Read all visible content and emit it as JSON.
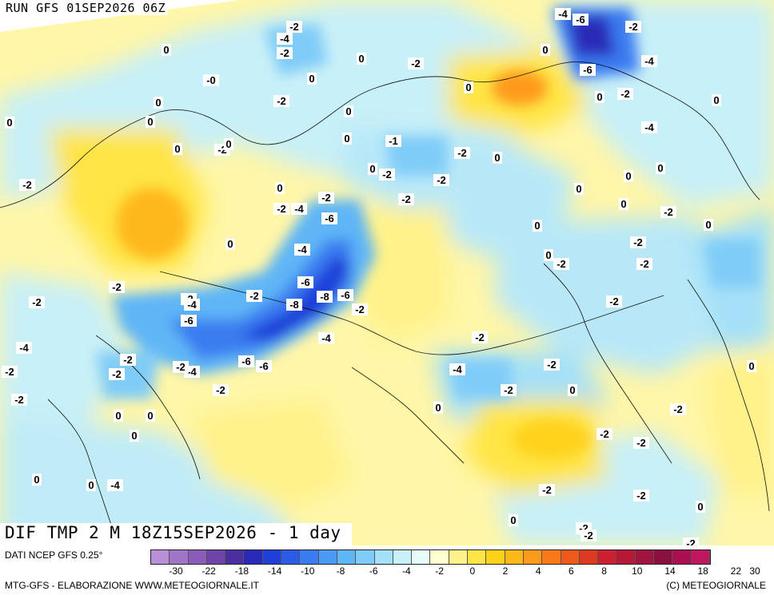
{
  "header": {
    "run": "RUN GFS 01SEP2026 06Z"
  },
  "title": "DIF TMP 2 M 18Z15SEP2026 - 1 day",
  "source": "DATI NCEP GFS 0.25°",
  "credit_left": "MTG-GFS - ELABORAZIONE WWW.METEOGIORNALE.IT",
  "credit_right": "(C) METEOGIORNALE",
  "colorbar": {
    "colors": [
      "#b98fd6",
      "#a075c8",
      "#8a5bb8",
      "#6f44a8",
      "#4a2fa0",
      "#2a2ab8",
      "#1f3fd8",
      "#2a5ce8",
      "#3a7cf0",
      "#4a9af4",
      "#5fb6f6",
      "#80ccf8",
      "#a4e0f8",
      "#c8f0f8",
      "#e8fbfb",
      "#ffffd0",
      "#fff28a",
      "#ffe545",
      "#ffd21a",
      "#ffb81a",
      "#ff9a1a",
      "#f97818",
      "#ee5a1a",
      "#de3a20",
      "#cc2030",
      "#b81838",
      "#a01440",
      "#8a1040",
      "#aa1050",
      "#c01860"
    ],
    "ticks": [
      "-30",
      "-22",
      "-18",
      "-14",
      "-10",
      "-8",
      "-6",
      "-4",
      "-2",
      "0",
      "2",
      "4",
      "6",
      "8",
      "10",
      "14",
      "18",
      "22",
      "30"
    ]
  },
  "map_labels": [
    {
      "text": "-2"
    },
    {
      "text": "-4"
    },
    {
      "text": "-2"
    },
    {
      "text": "-4"
    },
    {
      "text": "-6"
    },
    {
      "text": "-2"
    },
    {
      "text": "0"
    },
    {
      "text": "-4"
    },
    {
      "text": "0"
    },
    {
      "text": "-0"
    },
    {
      "text": "0"
    },
    {
      "text": "-2"
    },
    {
      "text": "0"
    },
    {
      "text": "-2"
    },
    {
      "text": "0"
    },
    {
      "text": "0"
    },
    {
      "text": "-6"
    },
    {
      "text": "0"
    },
    {
      "text": "-2"
    },
    {
      "text": "0"
    },
    {
      "text": "-4"
    },
    {
      "text": "0"
    },
    {
      "text": "0"
    },
    {
      "text": "0"
    },
    {
      "text": "0"
    },
    {
      "text": "-2"
    },
    {
      "text": "0"
    },
    {
      "text": "-1"
    },
    {
      "text": "-2"
    },
    {
      "text": "0"
    },
    {
      "text": "0"
    },
    {
      "text": "-2"
    },
    {
      "text": "0"
    },
    {
      "text": "-2"
    },
    {
      "text": "0"
    },
    {
      "text": "0"
    },
    {
      "text": "-2"
    },
    {
      "text": "-4"
    },
    {
      "text": "-6"
    },
    {
      "text": "-2"
    },
    {
      "text": "0"
    },
    {
      "text": "-2"
    },
    {
      "text": "-2"
    },
    {
      "text": "-4"
    },
    {
      "text": "0"
    },
    {
      "text": "0"
    },
    {
      "text": "0"
    },
    {
      "text": "-6"
    },
    {
      "text": "-8"
    },
    {
      "text": "-8"
    },
    {
      "text": "-6"
    },
    {
      "text": "-4"
    },
    {
      "text": "-2"
    },
    {
      "text": "-2"
    },
    {
      "text": "-2"
    },
    {
      "text": "-4"
    },
    {
      "text": "-6"
    },
    {
      "text": "-4"
    },
    {
      "text": "-2"
    },
    {
      "text": "-6"
    },
    {
      "text": "-6"
    },
    {
      "text": "-4"
    },
    {
      "text": "-2"
    },
    {
      "text": "-2"
    },
    {
      "text": "-2"
    },
    {
      "text": "0"
    },
    {
      "text": "0"
    },
    {
      "text": "-2"
    },
    {
      "text": "-2"
    },
    {
      "text": "0"
    },
    {
      "text": "-2"
    },
    {
      "text": "-2"
    },
    {
      "text": "-2"
    },
    {
      "text": "-4"
    },
    {
      "text": "-2"
    },
    {
      "text": "-2"
    },
    {
      "text": "-2"
    },
    {
      "text": "-2"
    },
    {
      "text": "0"
    },
    {
      "text": "-2"
    },
    {
      "text": "0"
    },
    {
      "text": "-2"
    },
    {
      "text": "0"
    },
    {
      "text": "0"
    },
    {
      "text": "0"
    },
    {
      "text": "-2"
    },
    {
      "text": "0"
    },
    {
      "text": "-2"
    },
    {
      "text": "0"
    },
    {
      "text": "0"
    },
    {
      "text": "-4"
    },
    {
      "text": "-2"
    },
    {
      "text": "-2"
    },
    {
      "text": "0"
    },
    {
      "text": "0"
    },
    {
      "text": "-2"
    },
    {
      "text": "-2"
    },
    {
      "text": "-2"
    },
    {
      "text": "0"
    },
    {
      "text": "0"
    },
    {
      "text": "0"
    },
    {
      "text": "0"
    },
    {
      "text": "0"
    },
    {
      "text": "0"
    },
    {
      "text": "-2"
    },
    {
      "text": "-2"
    }
  ]
}
